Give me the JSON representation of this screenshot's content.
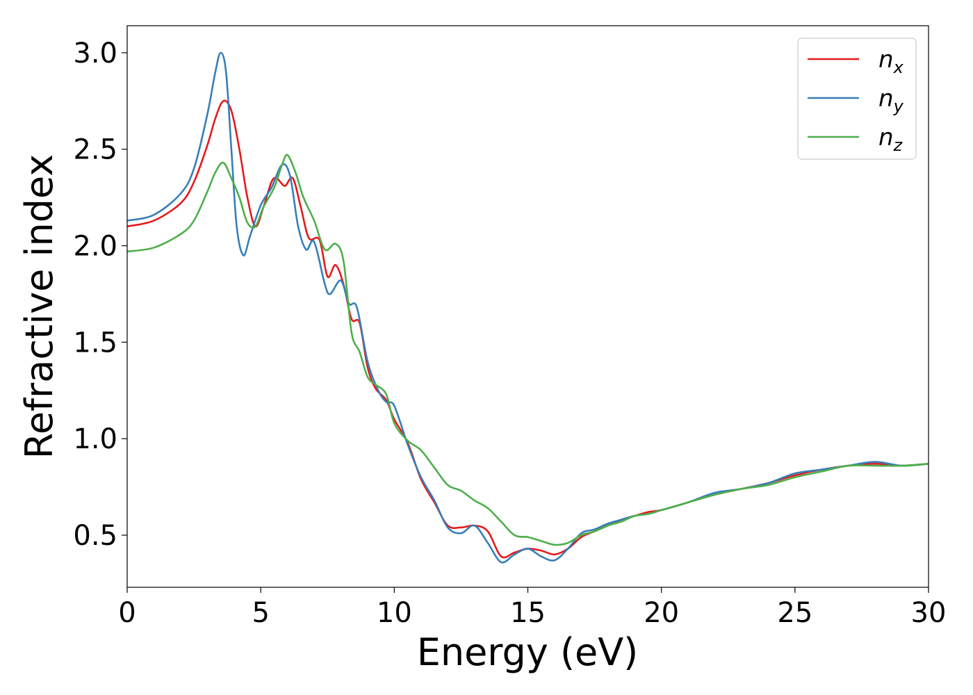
{
  "chart_data": {
    "type": "line",
    "title": "",
    "xlabel": "Energy (eV)",
    "ylabel": "Refractive index",
    "xlim": [
      0,
      30
    ],
    "ylim": [
      0.23,
      3.14
    ],
    "xticks": [
      0,
      5,
      10,
      15,
      20,
      25,
      30
    ],
    "xtick_labels": [
      "0",
      "5",
      "10",
      "15",
      "20",
      "25",
      "30"
    ],
    "yticks": [
      0.5,
      1.0,
      1.5,
      2.0,
      2.5,
      3.0
    ],
    "ytick_labels": [
      "0.5",
      "1.0",
      "1.5",
      "2.0",
      "2.5",
      "3.0"
    ],
    "grid": false,
    "legend_position": "top-right",
    "series": [
      {
        "name": "n",
        "subscript": "x",
        "color": "#e41a1c",
        "points": [
          [
            0,
            2.1
          ],
          [
            1,
            2.13
          ],
          [
            2,
            2.22
          ],
          [
            2.5,
            2.33
          ],
          [
            3,
            2.52
          ],
          [
            3.3,
            2.66
          ],
          [
            3.6,
            2.75
          ],
          [
            3.9,
            2.7
          ],
          [
            4.2,
            2.5
          ],
          [
            4.5,
            2.25
          ],
          [
            4.8,
            2.1
          ],
          [
            5.1,
            2.2
          ],
          [
            5.4,
            2.33
          ],
          [
            5.6,
            2.35
          ],
          [
            5.9,
            2.31
          ],
          [
            6.2,
            2.35
          ],
          [
            6.5,
            2.2
          ],
          [
            6.8,
            2.04
          ],
          [
            7.2,
            2.03
          ],
          [
            7.5,
            1.84
          ],
          [
            7.8,
            1.9
          ],
          [
            8.1,
            1.8
          ],
          [
            8.4,
            1.62
          ],
          [
            8.7,
            1.6
          ],
          [
            9.0,
            1.37
          ],
          [
            9.3,
            1.26
          ],
          [
            9.7,
            1.2
          ],
          [
            10.0,
            1.1
          ],
          [
            10.5,
            0.98
          ],
          [
            11.0,
            0.79
          ],
          [
            11.5,
            0.67
          ],
          [
            12.0,
            0.55
          ],
          [
            12.5,
            0.54
          ],
          [
            13.0,
            0.55
          ],
          [
            13.5,
            0.52
          ],
          [
            14.0,
            0.39
          ],
          [
            14.5,
            0.41
          ],
          [
            15.0,
            0.43
          ],
          [
            15.5,
            0.42
          ],
          [
            16.0,
            0.4
          ],
          [
            16.5,
            0.43
          ],
          [
            17.0,
            0.49
          ],
          [
            17.5,
            0.52
          ],
          [
            18.0,
            0.55
          ],
          [
            18.5,
            0.58
          ],
          [
            19.0,
            0.6
          ],
          [
            19.5,
            0.62
          ],
          [
            20.0,
            0.63
          ],
          [
            21.0,
            0.67
          ],
          [
            22.0,
            0.71
          ],
          [
            23.0,
            0.74
          ],
          [
            24.0,
            0.77
          ],
          [
            25.0,
            0.81
          ],
          [
            26.0,
            0.84
          ],
          [
            27.0,
            0.86
          ],
          [
            28.0,
            0.87
          ],
          [
            29.0,
            0.86
          ],
          [
            30.0,
            0.87
          ]
        ]
      },
      {
        "name": "n",
        "subscript": "y",
        "color": "#377eb8",
        "points": [
          [
            0,
            2.13
          ],
          [
            1,
            2.16
          ],
          [
            2,
            2.27
          ],
          [
            2.5,
            2.4
          ],
          [
            3,
            2.68
          ],
          [
            3.3,
            2.9
          ],
          [
            3.5,
            3.0
          ],
          [
            3.7,
            2.9
          ],
          [
            3.9,
            2.5
          ],
          [
            4.1,
            2.1
          ],
          [
            4.35,
            1.95
          ],
          [
            4.6,
            2.05
          ],
          [
            5.0,
            2.21
          ],
          [
            5.4,
            2.3
          ],
          [
            5.8,
            2.42
          ],
          [
            6.1,
            2.36
          ],
          [
            6.4,
            2.1
          ],
          [
            6.7,
            1.98
          ],
          [
            7.0,
            2.02
          ],
          [
            7.4,
            1.8
          ],
          [
            7.6,
            1.75
          ],
          [
            8.0,
            1.82
          ],
          [
            8.3,
            1.7
          ],
          [
            8.6,
            1.68
          ],
          [
            9.0,
            1.4
          ],
          [
            9.4,
            1.25
          ],
          [
            9.7,
            1.19
          ],
          [
            10.0,
            1.17
          ],
          [
            10.5,
            0.97
          ],
          [
            11.0,
            0.8
          ],
          [
            11.5,
            0.68
          ],
          [
            12.0,
            0.54
          ],
          [
            12.5,
            0.51
          ],
          [
            13.0,
            0.55
          ],
          [
            13.5,
            0.46
          ],
          [
            14.0,
            0.36
          ],
          [
            14.5,
            0.4
          ],
          [
            15.0,
            0.43
          ],
          [
            15.5,
            0.39
          ],
          [
            16.0,
            0.37
          ],
          [
            16.5,
            0.43
          ],
          [
            17.0,
            0.51
          ],
          [
            17.5,
            0.53
          ],
          [
            18.0,
            0.56
          ],
          [
            18.5,
            0.58
          ],
          [
            19.0,
            0.6
          ],
          [
            19.5,
            0.61
          ],
          [
            20.0,
            0.63
          ],
          [
            21.0,
            0.67
          ],
          [
            22.0,
            0.72
          ],
          [
            23.0,
            0.74
          ],
          [
            24.0,
            0.77
          ],
          [
            25.0,
            0.82
          ],
          [
            26.0,
            0.84
          ],
          [
            27.0,
            0.86
          ],
          [
            28.0,
            0.88
          ],
          [
            29.0,
            0.86
          ],
          [
            30.0,
            0.87
          ]
        ]
      },
      {
        "name": "n",
        "subscript": "z",
        "color": "#4daf4a",
        "points": [
          [
            0,
            1.97
          ],
          [
            1,
            1.99
          ],
          [
            2,
            2.06
          ],
          [
            2.5,
            2.13
          ],
          [
            3,
            2.28
          ],
          [
            3.3,
            2.38
          ],
          [
            3.6,
            2.43
          ],
          [
            3.9,
            2.35
          ],
          [
            4.2,
            2.25
          ],
          [
            4.5,
            2.12
          ],
          [
            4.8,
            2.1
          ],
          [
            5.1,
            2.2
          ],
          [
            5.5,
            2.3
          ],
          [
            5.8,
            2.42
          ],
          [
            6.0,
            2.47
          ],
          [
            6.3,
            2.38
          ],
          [
            6.6,
            2.25
          ],
          [
            7.0,
            2.13
          ],
          [
            7.4,
            1.98
          ],
          [
            7.8,
            2.01
          ],
          [
            8.1,
            1.92
          ],
          [
            8.4,
            1.55
          ],
          [
            8.7,
            1.45
          ],
          [
            9.0,
            1.32
          ],
          [
            9.3,
            1.28
          ],
          [
            9.7,
            1.23
          ],
          [
            10.0,
            1.08
          ],
          [
            10.5,
            0.99
          ],
          [
            11.0,
            0.94
          ],
          [
            11.5,
            0.85
          ],
          [
            12.0,
            0.76
          ],
          [
            12.5,
            0.73
          ],
          [
            13.0,
            0.68
          ],
          [
            13.5,
            0.64
          ],
          [
            14.0,
            0.57
          ],
          [
            14.5,
            0.5
          ],
          [
            15.0,
            0.49
          ],
          [
            15.5,
            0.47
          ],
          [
            16.0,
            0.45
          ],
          [
            16.5,
            0.46
          ],
          [
            17.0,
            0.5
          ],
          [
            17.5,
            0.52
          ],
          [
            18.0,
            0.55
          ],
          [
            18.5,
            0.57
          ],
          [
            19.0,
            0.6
          ],
          [
            19.5,
            0.61
          ],
          [
            20.0,
            0.63
          ],
          [
            21.0,
            0.67
          ],
          [
            22.0,
            0.71
          ],
          [
            23.0,
            0.74
          ],
          [
            24.0,
            0.76
          ],
          [
            25.0,
            0.8
          ],
          [
            26.0,
            0.83
          ],
          [
            27.0,
            0.86
          ],
          [
            28.0,
            0.86
          ],
          [
            29.0,
            0.86
          ],
          [
            30.0,
            0.87
          ]
        ]
      }
    ]
  }
}
